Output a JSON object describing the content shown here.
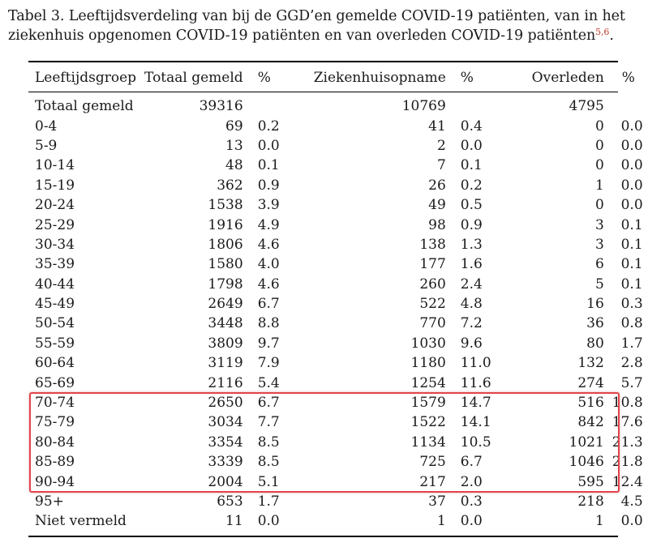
{
  "caption": {
    "text": "Tabel 3. Leeftijdsverdeling van bij de GGD’en gemelde COVID-19 patiënten, van in het ziekenhuis opgenomen COVID-19 patiënten en van overleden COVID-19 patiënten",
    "refs": "5,6",
    "end": "."
  },
  "table": {
    "headers": {
      "group": "Leeftijdsgroep",
      "total": "Totaal gemeld",
      "total_pct": "%",
      "hospital": "Ziekenhuisopname",
      "hospital_pct": "%",
      "deceased": "Overleden",
      "deceased_pct": "%"
    },
    "rows": [
      {
        "group": "Totaal gemeld",
        "total": "39316",
        "total_pct": "",
        "hospital": "10769",
        "hospital_pct": "",
        "deceased": "4795",
        "deceased_pct": ""
      },
      {
        "group": "0-4",
        "total": "69",
        "total_pct": "0.2",
        "hospital": "41",
        "hospital_pct": "0.4",
        "deceased": "0",
        "deceased_pct": "0.0"
      },
      {
        "group": "5-9",
        "total": "13",
        "total_pct": "0.0",
        "hospital": "2",
        "hospital_pct": "0.0",
        "deceased": "0",
        "deceased_pct": "0.0"
      },
      {
        "group": "10-14",
        "total": "48",
        "total_pct": "0.1",
        "hospital": "7",
        "hospital_pct": "0.1",
        "deceased": "0",
        "deceased_pct": "0.0"
      },
      {
        "group": "15-19",
        "total": "362",
        "total_pct": "0.9",
        "hospital": "26",
        "hospital_pct": "0.2",
        "deceased": "1",
        "deceased_pct": "0.0"
      },
      {
        "group": "20-24",
        "total": "1538",
        "total_pct": "3.9",
        "hospital": "49",
        "hospital_pct": "0.5",
        "deceased": "0",
        "deceased_pct": "0.0"
      },
      {
        "group": "25-29",
        "total": "1916",
        "total_pct": "4.9",
        "hospital": "98",
        "hospital_pct": "0.9",
        "deceased": "3",
        "deceased_pct": "0.1"
      },
      {
        "group": "30-34",
        "total": "1806",
        "total_pct": "4.6",
        "hospital": "138",
        "hospital_pct": "1.3",
        "deceased": "3",
        "deceased_pct": "0.1"
      },
      {
        "group": "35-39",
        "total": "1580",
        "total_pct": "4.0",
        "hospital": "177",
        "hospital_pct": "1.6",
        "deceased": "6",
        "deceased_pct": "0.1"
      },
      {
        "group": "40-44",
        "total": "1798",
        "total_pct": "4.6",
        "hospital": "260",
        "hospital_pct": "2.4",
        "deceased": "5",
        "deceased_pct": "0.1"
      },
      {
        "group": "45-49",
        "total": "2649",
        "total_pct": "6.7",
        "hospital": "522",
        "hospital_pct": "4.8",
        "deceased": "16",
        "deceased_pct": "0.3"
      },
      {
        "group": "50-54",
        "total": "3448",
        "total_pct": "8.8",
        "hospital": "770",
        "hospital_pct": "7.2",
        "deceased": "36",
        "deceased_pct": "0.8"
      },
      {
        "group": "55-59",
        "total": "3809",
        "total_pct": "9.7",
        "hospital": "1030",
        "hospital_pct": "9.6",
        "deceased": "80",
        "deceased_pct": "1.7"
      },
      {
        "group": "60-64",
        "total": "3119",
        "total_pct": "7.9",
        "hospital": "1180",
        "hospital_pct": "11.0",
        "deceased": "132",
        "deceased_pct": "2.8"
      },
      {
        "group": "65-69",
        "total": "2116",
        "total_pct": "5.4",
        "hospital": "1254",
        "hospital_pct": "11.6",
        "deceased": "274",
        "deceased_pct": "5.7"
      },
      {
        "group": "70-74",
        "total": "2650",
        "total_pct": "6.7",
        "hospital": "1579",
        "hospital_pct": "14.7",
        "deceased": "516",
        "deceased_pct": "10.8"
      },
      {
        "group": "75-79",
        "total": "3034",
        "total_pct": "7.7",
        "hospital": "1522",
        "hospital_pct": "14.1",
        "deceased": "842",
        "deceased_pct": "17.6"
      },
      {
        "group": "80-84",
        "total": "3354",
        "total_pct": "8.5",
        "hospital": "1134",
        "hospital_pct": "10.5",
        "deceased": "1021",
        "deceased_pct": "21.3"
      },
      {
        "group": "85-89",
        "total": "3339",
        "total_pct": "8.5",
        "hospital": "725",
        "hospital_pct": "6.7",
        "deceased": "1046",
        "deceased_pct": "21.8"
      },
      {
        "group": "90-94",
        "total": "2004",
        "total_pct": "5.1",
        "hospital": "217",
        "hospital_pct": "2.0",
        "deceased": "595",
        "deceased_pct": "12.4"
      },
      {
        "group": "95+",
        "total": "653",
        "total_pct": "1.7",
        "hospital": "37",
        "hospital_pct": "0.3",
        "deceased": "218",
        "deceased_pct": "4.5"
      },
      {
        "group": "Niet vermeld",
        "total": "11",
        "total_pct": "0.0",
        "hospital": "1",
        "hospital_pct": "0.0",
        "deceased": "1",
        "deceased_pct": "0.0"
      }
    ]
  },
  "highlight": {
    "color": "#e0444a",
    "rows": [
      "70-74",
      "75-79",
      "80-84",
      "85-89",
      "90-94"
    ]
  }
}
